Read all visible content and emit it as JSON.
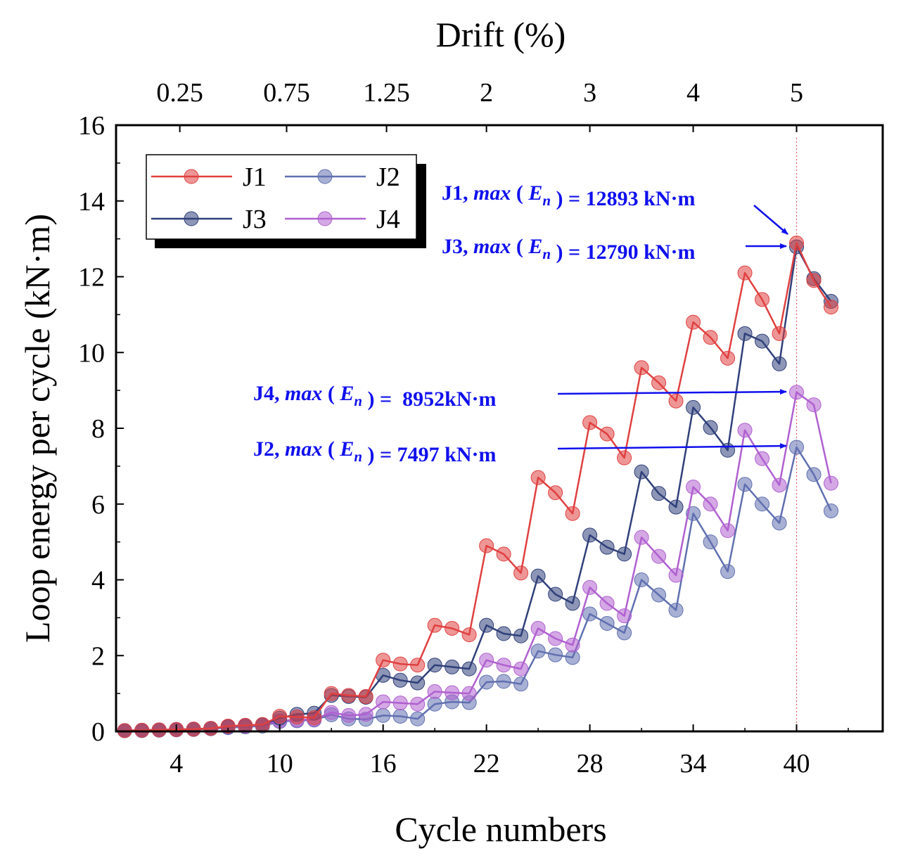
{
  "chart_data": {
    "type": "line",
    "title": "",
    "xlabel": "Cycle numbers",
    "ylabel": "Loop energy per cycle (kN·m)",
    "x2label": "Drift (%)",
    "xlim": [
      0.5,
      45
    ],
    "ylim": [
      0,
      16
    ],
    "xticks": [
      4,
      10,
      16,
      22,
      28,
      34,
      40
    ],
    "yticks": [
      0,
      2,
      4,
      6,
      8,
      10,
      12,
      14,
      16
    ],
    "top_ticks": [
      {
        "label": "0.25",
        "cycle": 4.2
      },
      {
        "label": "0.75",
        "cycle": 10.4
      },
      {
        "label": "1.25",
        "cycle": 16.2
      },
      {
        "label": "2",
        "cycle": 22
      },
      {
        "label": "3",
        "cycle": 28
      },
      {
        "label": "4",
        "cycle": 34
      },
      {
        "label": "5",
        "cycle": 40
      }
    ],
    "reference_line_x": 40,
    "x": [
      1,
      2,
      3,
      4,
      5,
      6,
      7,
      8,
      9,
      10,
      11,
      12,
      13,
      14,
      15,
      16,
      17,
      18,
      19,
      20,
      21,
      22,
      23,
      24,
      25,
      26,
      27,
      28,
      29,
      30,
      31,
      32,
      33,
      34,
      35,
      36,
      37,
      38,
      39,
      40,
      41,
      42
    ],
    "series": [
      {
        "name": "J1",
        "color": "#e04040",
        "values": [
          0.02,
          0.03,
          0.04,
          0.05,
          0.06,
          0.08,
          0.14,
          0.16,
          0.18,
          0.4,
          0.38,
          0.36,
          1.0,
          0.95,
          0.92,
          1.88,
          1.78,
          1.75,
          2.8,
          2.72,
          2.55,
          4.9,
          4.68,
          4.18,
          6.7,
          6.3,
          5.75,
          8.15,
          7.85,
          7.22,
          9.6,
          9.2,
          8.72,
          10.8,
          10.4,
          9.85,
          12.1,
          11.4,
          10.5,
          12.89,
          11.9,
          11.2
        ]
      },
      {
        "name": "J2",
        "color": "#6070b0",
        "values": [
          0.02,
          0.02,
          0.03,
          0.04,
          0.05,
          0.07,
          0.1,
          0.12,
          0.14,
          0.26,
          0.28,
          0.3,
          0.44,
          0.33,
          0.32,
          0.42,
          0.4,
          0.33,
          0.72,
          0.78,
          0.76,
          1.3,
          1.32,
          1.25,
          2.12,
          2.02,
          1.95,
          3.1,
          2.85,
          2.6,
          4.0,
          3.6,
          3.2,
          5.75,
          5.0,
          4.22,
          6.52,
          6.0,
          5.5,
          7.5,
          6.78,
          5.82
        ]
      },
      {
        "name": "J3",
        "color": "#30407a",
        "values": [
          0.02,
          0.03,
          0.04,
          0.05,
          0.06,
          0.08,
          0.13,
          0.16,
          0.18,
          0.35,
          0.45,
          0.48,
          0.95,
          0.92,
          0.9,
          1.48,
          1.35,
          1.28,
          1.75,
          1.7,
          1.65,
          2.8,
          2.58,
          2.52,
          4.1,
          3.62,
          3.38,
          5.18,
          4.86,
          4.68,
          6.85,
          6.28,
          5.92,
          8.55,
          8.02,
          7.42,
          10.5,
          10.3,
          9.7,
          12.79,
          11.95,
          11.35
        ]
      },
      {
        "name": "J4",
        "color": "#b060d0",
        "values": [
          0.02,
          0.03,
          0.04,
          0.05,
          0.06,
          0.08,
          0.12,
          0.14,
          0.17,
          0.28,
          0.3,
          0.32,
          0.5,
          0.42,
          0.45,
          0.78,
          0.75,
          0.72,
          1.05,
          1.02,
          1.0,
          1.88,
          1.75,
          1.65,
          2.72,
          2.45,
          2.28,
          3.8,
          3.38,
          3.05,
          5.12,
          4.62,
          4.12,
          6.45,
          6.0,
          5.3,
          7.95,
          7.2,
          6.5,
          8.95,
          8.62,
          6.55
        ]
      }
    ],
    "legend": {
      "position": "top-left",
      "entries": [
        "J1",
        "J2",
        "J3",
        "J4"
      ]
    },
    "annotations": [
      {
        "series": "J1",
        "prefix": "J1, ",
        "fn": "max",
        "open": " ( ",
        "var": "E",
        "sub": "n",
        "close": " )",
        "eq": " = 12893 kN·m",
        "target_x": 40,
        "target_y": 12.89
      },
      {
        "series": "J3",
        "prefix": "J3, ",
        "fn": "max",
        "open": " ( ",
        "var": "E",
        "sub": "n",
        "close": " )",
        "eq": " = 12790 kN·m",
        "target_x": 40,
        "target_y": 12.79
      },
      {
        "series": "J4",
        "prefix": "J4, ",
        "fn": "max",
        "open": " ( ",
        "var": "E",
        "sub": "n",
        "close": " )",
        "eq": " =  8952kN·m",
        "target_x": 40,
        "target_y": 8.95
      },
      {
        "series": "J2",
        "prefix": "J2, ",
        "fn": "max",
        "open": " ( ",
        "var": "E",
        "sub": "n",
        "close": " )",
        "eq": " = 7497 kN·m",
        "target_x": 40,
        "target_y": 7.5
      }
    ]
  }
}
